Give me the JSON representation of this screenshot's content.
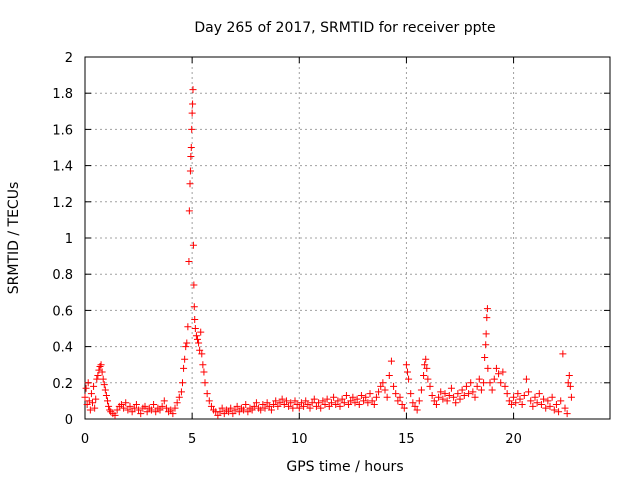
{
  "chart_data": {
    "type": "scatter",
    "title": "Day 265 of 2017, SRMTID for receiver ppte",
    "xlabel": "GPS time / hours",
    "ylabel": "SRMTID / TECUs",
    "xlim": [
      0,
      24.5
    ],
    "ylim": [
      0,
      2
    ],
    "xticks": [
      0,
      5,
      10,
      15,
      20
    ],
    "xtick_labels": [
      "0",
      "5",
      "10",
      "15",
      "20"
    ],
    "yticks": [
      0,
      0.2,
      0.4,
      0.6,
      0.8,
      1,
      1.2,
      1.4,
      1.6,
      1.8,
      2
    ],
    "ytick_labels": [
      "0",
      "0.2",
      "0.4",
      "0.6",
      "0.8",
      "1",
      "1.2",
      "1.4",
      "1.6",
      "1.8",
      "2"
    ],
    "grid": true,
    "marker": "+",
    "color": "#ff0000",
    "series": [
      {
        "name": "SRMTID",
        "points": [
          [
            0.0,
            0.12
          ],
          [
            0.05,
            0.17
          ],
          [
            0.1,
            0.08
          ],
          [
            0.15,
            0.2
          ],
          [
            0.2,
            0.1
          ],
          [
            0.25,
            0.05
          ],
          [
            0.3,
            0.14
          ],
          [
            0.35,
            0.09
          ],
          [
            0.4,
            0.18
          ],
          [
            0.45,
            0.06
          ],
          [
            0.5,
            0.11
          ],
          [
            0.55,
            0.22
          ],
          [
            0.6,
            0.24
          ],
          [
            0.65,
            0.27
          ],
          [
            0.7,
            0.29
          ],
          [
            0.75,
            0.3
          ],
          [
            0.8,
            0.26
          ],
          [
            0.85,
            0.22
          ],
          [
            0.9,
            0.19
          ],
          [
            0.95,
            0.16
          ],
          [
            1.0,
            0.13
          ],
          [
            1.05,
            0.1
          ],
          [
            1.1,
            0.07
          ],
          [
            1.15,
            0.05
          ],
          [
            1.2,
            0.04
          ],
          [
            1.3,
            0.03
          ],
          [
            1.4,
            0.02
          ],
          [
            1.5,
            0.05
          ],
          [
            1.6,
            0.07
          ],
          [
            1.7,
            0.08
          ],
          [
            1.8,
            0.06
          ],
          [
            1.9,
            0.09
          ],
          [
            2.0,
            0.05
          ],
          [
            2.1,
            0.07
          ],
          [
            2.2,
            0.04
          ],
          [
            2.3,
            0.06
          ],
          [
            2.4,
            0.08
          ],
          [
            2.5,
            0.05
          ],
          [
            2.6,
            0.03
          ],
          [
            2.7,
            0.06
          ],
          [
            2.8,
            0.07
          ],
          [
            2.9,
            0.04
          ],
          [
            3.0,
            0.06
          ],
          [
            3.1,
            0.05
          ],
          [
            3.2,
            0.08
          ],
          [
            3.3,
            0.04
          ],
          [
            3.4,
            0.06
          ],
          [
            3.5,
            0.05
          ],
          [
            3.6,
            0.07
          ],
          [
            3.7,
            0.1
          ],
          [
            3.8,
            0.06
          ],
          [
            3.9,
            0.04
          ],
          [
            4.0,
            0.05
          ],
          [
            4.1,
            0.03
          ],
          [
            4.2,
            0.06
          ],
          [
            4.3,
            0.09
          ],
          [
            4.4,
            0.12
          ],
          [
            4.5,
            0.15
          ],
          [
            4.55,
            0.2
          ],
          [
            4.6,
            0.28
          ],
          [
            4.65,
            0.33
          ],
          [
            4.7,
            0.4
          ],
          [
            4.75,
            0.42
          ],
          [
            4.8,
            0.51
          ],
          [
            4.85,
            0.87
          ],
          [
            4.87,
            1.15
          ],
          [
            4.9,
            1.3
          ],
          [
            4.92,
            1.37
          ],
          [
            4.94,
            1.45
          ],
          [
            4.96,
            1.5
          ],
          [
            4.98,
            1.6
          ],
          [
            5.0,
            1.69
          ],
          [
            5.02,
            1.74
          ],
          [
            5.04,
            1.82
          ],
          [
            5.06,
            0.96
          ],
          [
            5.08,
            0.74
          ],
          [
            5.1,
            0.62
          ],
          [
            5.12,
            0.55
          ],
          [
            5.15,
            0.5
          ],
          [
            5.2,
            0.46
          ],
          [
            5.25,
            0.44
          ],
          [
            5.3,
            0.42
          ],
          [
            5.35,
            0.38
          ],
          [
            5.4,
            0.48
          ],
          [
            5.45,
            0.36
          ],
          [
            5.5,
            0.3
          ],
          [
            5.55,
            0.26
          ],
          [
            5.6,
            0.2
          ],
          [
            5.7,
            0.14
          ],
          [
            5.8,
            0.1
          ],
          [
            5.9,
            0.07
          ],
          [
            6.0,
            0.05
          ],
          [
            6.1,
            0.04
          ],
          [
            6.2,
            0.02
          ],
          [
            6.3,
            0.04
          ],
          [
            6.4,
            0.06
          ],
          [
            6.5,
            0.03
          ],
          [
            6.6,
            0.05
          ],
          [
            6.7,
            0.04
          ],
          [
            6.8,
            0.06
          ],
          [
            6.9,
            0.03
          ],
          [
            7.0,
            0.05
          ],
          [
            7.1,
            0.07
          ],
          [
            7.2,
            0.04
          ],
          [
            7.3,
            0.06
          ],
          [
            7.4,
            0.05
          ],
          [
            7.5,
            0.08
          ],
          [
            7.6,
            0.04
          ],
          [
            7.7,
            0.06
          ],
          [
            7.8,
            0.05
          ],
          [
            7.9,
            0.07
          ],
          [
            8.0,
            0.09
          ],
          [
            8.1,
            0.06
          ],
          [
            8.2,
            0.05
          ],
          [
            8.3,
            0.08
          ],
          [
            8.4,
            0.06
          ],
          [
            8.5,
            0.09
          ],
          [
            8.6,
            0.07
          ],
          [
            8.7,
            0.05
          ],
          [
            8.8,
            0.08
          ],
          [
            8.9,
            0.1
          ],
          [
            9.0,
            0.07
          ],
          [
            9.1,
            0.09
          ],
          [
            9.2,
            0.11
          ],
          [
            9.3,
            0.08
          ],
          [
            9.4,
            0.1
          ],
          [
            9.5,
            0.07
          ],
          [
            9.6,
            0.09
          ],
          [
            9.7,
            0.06
          ],
          [
            9.8,
            0.1
          ],
          [
            9.9,
            0.08
          ],
          [
            10.0,
            0.06
          ],
          [
            10.1,
            0.09
          ],
          [
            10.2,
            0.07
          ],
          [
            10.3,
            0.1
          ],
          [
            10.4,
            0.08
          ],
          [
            10.5,
            0.06
          ],
          [
            10.6,
            0.09
          ],
          [
            10.7,
            0.11
          ],
          [
            10.8,
            0.07
          ],
          [
            10.9,
            0.09
          ],
          [
            11.0,
            0.06
          ],
          [
            11.1,
            0.1
          ],
          [
            11.2,
            0.08
          ],
          [
            11.3,
            0.11
          ],
          [
            11.4,
            0.07
          ],
          [
            11.5,
            0.09
          ],
          [
            11.6,
            0.12
          ],
          [
            11.7,
            0.08
          ],
          [
            11.8,
            0.1
          ],
          [
            11.9,
            0.07
          ],
          [
            12.0,
            0.11
          ],
          [
            12.1,
            0.09
          ],
          [
            12.2,
            0.13
          ],
          [
            12.3,
            0.08
          ],
          [
            12.4,
            0.1
          ],
          [
            12.5,
            0.12
          ],
          [
            12.6,
            0.09
          ],
          [
            12.7,
            0.11
          ],
          [
            12.8,
            0.08
          ],
          [
            12.9,
            0.13
          ],
          [
            13.0,
            0.1
          ],
          [
            13.1,
            0.12
          ],
          [
            13.2,
            0.09
          ],
          [
            13.3,
            0.14
          ],
          [
            13.4,
            0.1
          ],
          [
            13.5,
            0.08
          ],
          [
            13.6,
            0.12
          ],
          [
            13.7,
            0.15
          ],
          [
            13.8,
            0.18
          ],
          [
            13.9,
            0.2
          ],
          [
            14.0,
            0.16
          ],
          [
            14.1,
            0.12
          ],
          [
            14.2,
            0.24
          ],
          [
            14.3,
            0.32
          ],
          [
            14.4,
            0.18
          ],
          [
            14.5,
            0.14
          ],
          [
            14.6,
            0.1
          ],
          [
            14.7,
            0.12
          ],
          [
            14.8,
            0.08
          ],
          [
            14.9,
            0.06
          ],
          [
            15.0,
            0.3
          ],
          [
            15.05,
            0.26
          ],
          [
            15.1,
            0.22
          ],
          [
            15.2,
            0.14
          ],
          [
            15.3,
            0.09
          ],
          [
            15.4,
            0.07
          ],
          [
            15.5,
            0.05
          ],
          [
            15.6,
            0.1
          ],
          [
            15.7,
            0.16
          ],
          [
            15.8,
            0.24
          ],
          [
            15.85,
            0.3
          ],
          [
            15.9,
            0.33
          ],
          [
            15.95,
            0.28
          ],
          [
            16.0,
            0.22
          ],
          [
            16.1,
            0.18
          ],
          [
            16.2,
            0.13
          ],
          [
            16.3,
            0.1
          ],
          [
            16.4,
            0.08
          ],
          [
            16.5,
            0.12
          ],
          [
            16.6,
            0.15
          ],
          [
            16.7,
            0.11
          ],
          [
            16.8,
            0.14
          ],
          [
            16.9,
            0.1
          ],
          [
            17.0,
            0.13
          ],
          [
            17.1,
            0.17
          ],
          [
            17.2,
            0.12
          ],
          [
            17.3,
            0.09
          ],
          [
            17.4,
            0.14
          ],
          [
            17.5,
            0.11
          ],
          [
            17.6,
            0.16
          ],
          [
            17.7,
            0.13
          ],
          [
            17.8,
            0.18
          ],
          [
            17.9,
            0.14
          ],
          [
            18.0,
            0.2
          ],
          [
            18.1,
            0.15
          ],
          [
            18.2,
            0.12
          ],
          [
            18.3,
            0.18
          ],
          [
            18.4,
            0.22
          ],
          [
            18.5,
            0.16
          ],
          [
            18.6,
            0.2
          ],
          [
            18.65,
            0.34
          ],
          [
            18.7,
            0.41
          ],
          [
            18.72,
            0.47
          ],
          [
            18.75,
            0.56
          ],
          [
            18.78,
            0.61
          ],
          [
            18.8,
            0.28
          ],
          [
            18.9,
            0.2
          ],
          [
            19.0,
            0.16
          ],
          [
            19.1,
            0.22
          ],
          [
            19.2,
            0.28
          ],
          [
            19.3,
            0.25
          ],
          [
            19.4,
            0.2
          ],
          [
            19.5,
            0.26
          ],
          [
            19.6,
            0.18
          ],
          [
            19.7,
            0.14
          ],
          [
            19.8,
            0.1
          ],
          [
            19.9,
            0.08
          ],
          [
            20.0,
            0.12
          ],
          [
            20.1,
            0.09
          ],
          [
            20.2,
            0.14
          ],
          [
            20.3,
            0.11
          ],
          [
            20.4,
            0.08
          ],
          [
            20.5,
            0.13
          ],
          [
            20.6,
            0.22
          ],
          [
            20.7,
            0.15
          ],
          [
            20.8,
            0.1
          ],
          [
            20.9,
            0.07
          ],
          [
            21.0,
            0.12
          ],
          [
            21.1,
            0.09
          ],
          [
            21.2,
            0.14
          ],
          [
            21.3,
            0.08
          ],
          [
            21.4,
            0.11
          ],
          [
            21.5,
            0.06
          ],
          [
            21.6,
            0.1
          ],
          [
            21.7,
            0.07
          ],
          [
            21.8,
            0.12
          ],
          [
            21.9,
            0.05
          ],
          [
            22.0,
            0.08
          ],
          [
            22.1,
            0.04
          ],
          [
            22.2,
            0.1
          ],
          [
            22.3,
            0.36
          ],
          [
            22.4,
            0.06
          ],
          [
            22.5,
            0.03
          ],
          [
            22.55,
            0.2
          ],
          [
            22.6,
            0.24
          ],
          [
            22.65,
            0.18
          ],
          [
            22.7,
            0.12
          ]
        ]
      }
    ]
  }
}
